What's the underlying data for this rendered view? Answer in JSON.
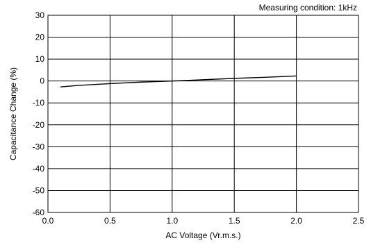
{
  "chart_data": {
    "type": "line",
    "title": "",
    "annotation": "Measuring condition: 1kHz",
    "xlabel": "AC Voltage (Vr.m.s.)",
    "ylabel": "Capacitance Change (%)",
    "xlim": [
      0,
      2.5
    ],
    "ylim": [
      -60,
      30
    ],
    "xticks": [
      0,
      0.5,
      1,
      1.5,
      2,
      2.5
    ],
    "xtick_labels": [
      "0.0",
      "0.5",
      "1.0",
      "1.5",
      "2.0",
      "2.5"
    ],
    "yticks": [
      30,
      20,
      10,
      0,
      -10,
      -20,
      -30,
      -40,
      -50,
      -60
    ],
    "ytick_labels": [
      "30",
      "20",
      "10",
      "0",
      "-10",
      "-20",
      "-30",
      "-40",
      "-50",
      "-60"
    ],
    "grid": true,
    "series": [
      {
        "x": [
          0.1,
          0.25,
          0.5,
          0.75,
          1.0,
          1.25,
          1.5,
          1.75,
          2.0
        ],
        "y": [
          -2.7,
          -2.0,
          -1.2,
          -0.5,
          0.0,
          0.6,
          1.2,
          1.7,
          2.3
        ],
        "color": "#000000"
      }
    ]
  }
}
